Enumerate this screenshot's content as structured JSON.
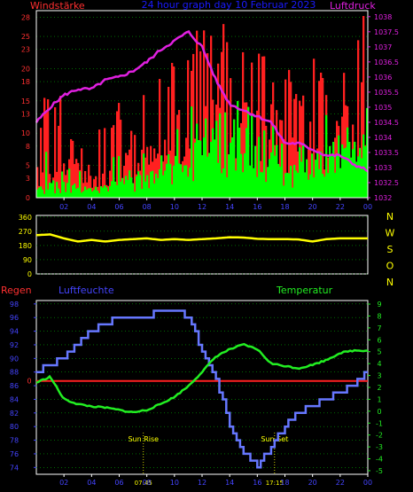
{
  "colors": {
    "background": "#000000",
    "frame": "#ffffff",
    "wind_gust": "#ff2020",
    "wind_avg": "#00ff00",
    "pressure": "#e020e0",
    "wind_dir": "#ffff00",
    "humidity": "#6677ff",
    "temperature": "#22ee22",
    "rain": "#ff2020",
    "axis_blue": "#4444ff",
    "axis_red": "#ff3030",
    "axis_magenta": "#e020e0",
    "axis_yellow": "#ffff00",
    "title_blue": "#1a1aff",
    "grid": "#00aa00"
  },
  "chart_data": [
    {
      "type": "bar",
      "name": "wind",
      "title": "24 hour graph day  10 Februar 2023",
      "left_label": "Windstärke",
      "right_label": "Luftdruck",
      "x_ticks": [
        "02",
        "04",
        "06",
        "08",
        "10",
        "12",
        "14",
        "16",
        "18",
        "20",
        "22",
        "00"
      ],
      "y_left_ticks": [
        "0",
        "3",
        "5",
        "8",
        "10",
        "13",
        "15",
        "18",
        "20",
        "23",
        "25",
        "28"
      ],
      "y_left_range": [
        0,
        29
      ],
      "y_right_ticks": [
        "1032",
        "1032.5",
        "1033",
        "1033.5",
        "1034",
        "1034.5",
        "1035",
        "1035.5",
        "1036",
        "1036.5",
        "1037",
        "1037.5",
        "1038"
      ],
      "y_right_range": [
        1032,
        1038.2
      ],
      "hours": [
        0,
        1,
        2,
        3,
        4,
        5,
        6,
        7,
        8,
        9,
        10,
        11,
        12,
        13,
        14,
        15,
        16,
        17,
        18,
        19,
        20,
        21,
        22,
        23,
        24
      ],
      "gust_mean": [
        4,
        6,
        6,
        5,
        4,
        4,
        8,
        6,
        7,
        8,
        11,
        11,
        13,
        14,
        16,
        13,
        13,
        12,
        11,
        9,
        11,
        11,
        12,
        14,
        16
      ],
      "gust_max": [
        13,
        18,
        15,
        10,
        9,
        12,
        15,
        13,
        18,
        19,
        25,
        29,
        29,
        29,
        27,
        29,
        28,
        23,
        21,
        19,
        24,
        19,
        22,
        29,
        29
      ],
      "avg_mean": [
        1,
        2,
        2,
        2,
        1,
        2,
        3,
        3,
        3,
        4,
        6,
        7,
        9,
        10,
        10,
        9,
        8,
        7,
        5,
        5,
        6,
        7,
        8,
        9,
        10
      ],
      "avg_max": [
        7,
        8,
        6,
        5,
        4,
        6,
        7,
        6,
        8,
        9,
        12,
        17,
        22,
        21,
        20,
        18,
        16,
        13,
        11,
        10,
        12,
        13,
        15,
        19,
        21
      ],
      "pressure": [
        1034.5,
        1035.0,
        1035.4,
        1035.6,
        1035.6,
        1035.9,
        1036.0,
        1036.2,
        1036.5,
        1036.9,
        1037.2,
        1037.5,
        1037.0,
        1035.9,
        1035.1,
        1034.9,
        1034.7,
        1034.5,
        1033.8,
        1033.8,
        1033.6,
        1033.4,
        1033.4,
        1033.1,
        1032.9
      ]
    },
    {
      "type": "line",
      "name": "wind_direction",
      "y_ticks": [
        "360",
        "270",
        "180",
        "90",
        "0"
      ],
      "y_range": [
        0,
        370
      ],
      "compass_labels": [
        "N",
        "W",
        "S",
        "O",
        "N"
      ],
      "hours": [
        0,
        1,
        2,
        3,
        4,
        5,
        6,
        7,
        8,
        9,
        10,
        11,
        12,
        13,
        14,
        15,
        16,
        17,
        18,
        19,
        20,
        21,
        22,
        23,
        24
      ],
      "direction": [
        245,
        250,
        225,
        205,
        215,
        205,
        215,
        220,
        225,
        215,
        220,
        215,
        220,
        225,
        232,
        230,
        222,
        220,
        220,
        218,
        205,
        220,
        225,
        225,
        225
      ]
    },
    {
      "type": "line",
      "name": "humidity_temperature",
      "left_red_label": "Regen",
      "left_label": "Luftfeuchte",
      "right_label": "Temperatur",
      "x_ticks": [
        "02",
        "04",
        "06",
        "08",
        "10",
        "12",
        "14",
        "16",
        "18",
        "20",
        "22",
        "00"
      ],
      "y_left_ticks": [
        "74",
        "76",
        "78",
        "80",
        "82",
        "84",
        "86",
        "88",
        "90",
        "92",
        "94",
        "96",
        "98"
      ],
      "y_left_range": [
        73,
        98.5
      ],
      "y_right_ticks": [
        "-5",
        "-4",
        "-3",
        "-2",
        "-1",
        "0",
        "1",
        "2",
        "3",
        "4",
        "5",
        "6",
        "7",
        "8",
        "9"
      ],
      "y_right_range": [
        -5.3,
        9.3
      ],
      "rain_ticks": [
        "0"
      ],
      "rain_value": 0,
      "sun_rise_label": "Sun Rise",
      "sun_set_label": "Sun Set",
      "sun_rise_time": "07:45",
      "sun_set_time": "17:15",
      "sun_rise_hour": 7.75,
      "sun_set_hour": 17.25,
      "hours": [
        0,
        1,
        2,
        3,
        4,
        5,
        6,
        7,
        8,
        9,
        10,
        11,
        12,
        13,
        14,
        15,
        16,
        17,
        18,
        19,
        20,
        21,
        22,
        23,
        24
      ],
      "humidity": [
        88,
        89,
        90,
        92,
        94,
        95,
        96,
        96,
        96,
        97,
        97,
        96,
        91,
        87,
        80,
        76,
        74,
        77,
        80,
        82,
        83,
        84,
        85,
        86,
        88
      ],
      "temperature": [
        2.4,
        2.9,
        1.0,
        0.6,
        0.4,
        0.3,
        0.1,
        -0.1,
        0.1,
        0.6,
        1.2,
        2.1,
        3.3,
        4.6,
        5.2,
        5.6,
        5.2,
        4.0,
        3.8,
        3.6,
        3.9,
        4.3,
        4.9,
        5.1,
        5.1
      ]
    }
  ]
}
